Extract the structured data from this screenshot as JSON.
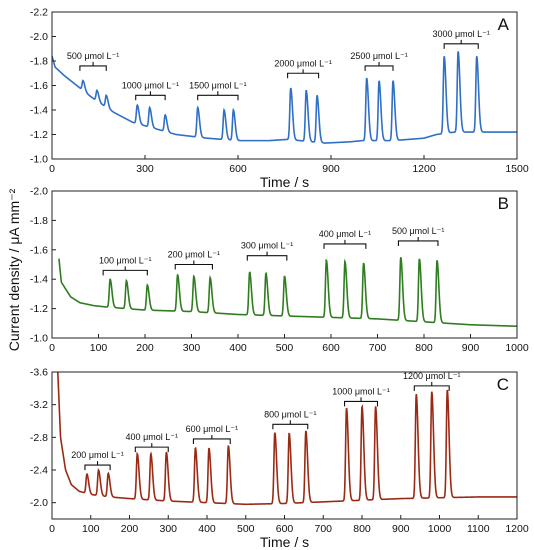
{
  "ylabel": "Current density / μA mm⁻²",
  "chart_data": [
    {
      "type": "line",
      "panel": "A",
      "color": "#2f6fc4",
      "xlabel": "Time / s",
      "xlim": [
        0,
        1500
      ],
      "ylim": [
        -2.2,
        -1.0
      ],
      "y_inverted": true,
      "xticks": [
        0,
        300,
        600,
        900,
        1200,
        1500
      ],
      "yticks": [
        -2.2,
        -2.0,
        -1.8,
        -1.6,
        -1.4,
        -1.2,
        -1.0
      ],
      "grid": false,
      "baseline": {
        "x": [
          0,
          10,
          40,
          80,
          130,
          200,
          260,
          330,
          400,
          500,
          600,
          700,
          760,
          800,
          880,
          960,
          1000,
          1100,
          1200,
          1240,
          1300,
          1400,
          1500
        ],
        "y": [
          -1.84,
          -1.75,
          -1.68,
          -1.6,
          -1.5,
          -1.38,
          -1.3,
          -1.25,
          -1.2,
          -1.17,
          -1.15,
          -1.15,
          -1.16,
          -1.15,
          -1.13,
          -1.14,
          -1.15,
          -1.15,
          -1.17,
          -1.2,
          -1.22,
          -1.22,
          -1.22
        ]
      },
      "peaks": [
        {
          "x": 100,
          "y": -1.64
        },
        {
          "x": 145,
          "y": -1.56
        },
        {
          "x": 175,
          "y": -1.52
        },
        {
          "x": 275,
          "y": -1.44
        },
        {
          "x": 315,
          "y": -1.42
        },
        {
          "x": 365,
          "y": -1.36
        },
        {
          "x": 470,
          "y": -1.42
        },
        {
          "x": 555,
          "y": -1.4
        },
        {
          "x": 585,
          "y": -1.4
        },
        {
          "x": 770,
          "y": -1.58
        },
        {
          "x": 820,
          "y": -1.56
        },
        {
          "x": 855,
          "y": -1.52
        },
        {
          "x": 1015,
          "y": -1.66
        },
        {
          "x": 1055,
          "y": -1.64
        },
        {
          "x": 1100,
          "y": -1.64
        },
        {
          "x": 1265,
          "y": -1.84
        },
        {
          "x": 1310,
          "y": -1.88
        },
        {
          "x": 1370,
          "y": -1.84
        }
      ],
      "groups": [
        {
          "label": "500 μmol L⁻¹",
          "x1": 90,
          "x2": 175,
          "y": -1.76
        },
        {
          "label": "1000 μmol L⁻¹",
          "x1": 270,
          "x2": 365,
          "y": -1.52
        },
        {
          "label": "1500 μmol L⁻¹",
          "x1": 470,
          "x2": 600,
          "y": -1.52
        },
        {
          "label": "2000 μmol L⁻¹",
          "x1": 760,
          "x2": 860,
          "y": -1.7
        },
        {
          "label": "2500 μmol L⁻¹",
          "x1": 1010,
          "x2": 1100,
          "y": -1.76
        },
        {
          "label": "3000 μmol L⁻¹",
          "x1": 1265,
          "x2": 1375,
          "y": -1.94
        }
      ]
    },
    {
      "type": "line",
      "panel": "B",
      "color": "#2e7d1f",
      "xlabel": "",
      "xlim": [
        0,
        1000
      ],
      "ylim": [
        -2.0,
        -1.0
      ],
      "y_inverted": true,
      "xticks": [
        0,
        100,
        200,
        300,
        400,
        500,
        600,
        700,
        800,
        900,
        1000
      ],
      "yticks": [
        -2.0,
        -1.8,
        -1.6,
        -1.4,
        -1.2,
        -1.0
      ],
      "grid": false,
      "baseline": {
        "x": [
          15,
          20,
          40,
          60,
          90,
          120,
          200,
          300,
          400,
          500,
          600,
          700,
          800,
          900,
          1000
        ],
        "y": [
          -1.54,
          -1.38,
          -1.28,
          -1.24,
          -1.22,
          -1.21,
          -1.19,
          -1.18,
          -1.16,
          -1.15,
          -1.14,
          -1.13,
          -1.11,
          -1.09,
          -1.08
        ]
      },
      "peaks": [
        {
          "x": 125,
          "y": -1.4
        },
        {
          "x": 160,
          "y": -1.39
        },
        {
          "x": 205,
          "y": -1.36
        },
        {
          "x": 270,
          "y": -1.43
        },
        {
          "x": 305,
          "y": -1.42
        },
        {
          "x": 340,
          "y": -1.41
        },
        {
          "x": 425,
          "y": -1.45
        },
        {
          "x": 460,
          "y": -1.44
        },
        {
          "x": 500,
          "y": -1.42
        },
        {
          "x": 590,
          "y": -1.53
        },
        {
          "x": 630,
          "y": -1.52
        },
        {
          "x": 670,
          "y": -1.51
        },
        {
          "x": 750,
          "y": -1.55
        },
        {
          "x": 790,
          "y": -1.54
        },
        {
          "x": 828,
          "y": -1.53
        }
      ],
      "groups": [
        {
          "label": "100 μmol L⁻¹",
          "x1": 110,
          "x2": 205,
          "y": -1.46
        },
        {
          "label": "200 μmol L⁻¹",
          "x1": 265,
          "x2": 345,
          "y": -1.5
        },
        {
          "label": "300 μmol L⁻¹",
          "x1": 420,
          "x2": 505,
          "y": -1.56
        },
        {
          "label": "400 μmol L⁻¹",
          "x1": 585,
          "x2": 675,
          "y": -1.64
        },
        {
          "label": "500 μmol L⁻¹",
          "x1": 745,
          "x2": 830,
          "y": -1.66
        }
      ]
    },
    {
      "type": "line",
      "panel": "C",
      "color": "#9a2a14",
      "xlabel": "Time / s",
      "xlim": [
        0,
        1200
      ],
      "ylim": [
        -3.6,
        -1.8
      ],
      "y_inverted": true,
      "xticks": [
        0,
        100,
        200,
        300,
        400,
        500,
        600,
        700,
        800,
        900,
        1000,
        1100,
        1200
      ],
      "yticks": [
        -3.6,
        -3.2,
        -2.8,
        -2.4,
        -2.0
      ],
      "grid": false,
      "baseline": {
        "x": [
          15,
          22,
          35,
          50,
          70,
          100,
          150,
          200,
          300,
          400,
          500,
          600,
          700,
          800,
          900,
          1000,
          1100,
          1200
        ],
        "y": [
          -3.6,
          -2.8,
          -2.4,
          -2.22,
          -2.14,
          -2.1,
          -2.07,
          -2.05,
          -2.02,
          -2.0,
          -1.98,
          -1.99,
          -2.01,
          -2.03,
          -2.05,
          -2.06,
          -2.07,
          -2.07
        ]
      },
      "peaks": [
        {
          "x": 90,
          "y": -2.35
        },
        {
          "x": 120,
          "y": -2.4
        },
        {
          "x": 145,
          "y": -2.36
        },
        {
          "x": 220,
          "y": -2.6
        },
        {
          "x": 255,
          "y": -2.6
        },
        {
          "x": 295,
          "y": -2.62
        },
        {
          "x": 370,
          "y": -2.67
        },
        {
          "x": 405,
          "y": -2.67
        },
        {
          "x": 455,
          "y": -2.7
        },
        {
          "x": 575,
          "y": -2.86
        },
        {
          "x": 612,
          "y": -2.85
        },
        {
          "x": 655,
          "y": -2.88
        },
        {
          "x": 760,
          "y": -3.16
        },
        {
          "x": 800,
          "y": -3.18
        },
        {
          "x": 835,
          "y": -3.18
        },
        {
          "x": 940,
          "y": -3.33
        },
        {
          "x": 980,
          "y": -3.36
        },
        {
          "x": 1020,
          "y": -3.38
        }
      ],
      "groups": [
        {
          "label": "200 μmol L⁻¹",
          "x1": 85,
          "x2": 150,
          "y": -2.46
        },
        {
          "label": "400 μmol L⁻¹",
          "x1": 215,
          "x2": 300,
          "y": -2.68
        },
        {
          "label": "600 μmol L⁻¹",
          "x1": 365,
          "x2": 460,
          "y": -2.78
        },
        {
          "label": "800 μmol L⁻¹",
          "x1": 570,
          "x2": 660,
          "y": -2.96
        },
        {
          "label": "1000 μmol L⁻¹",
          "x1": 755,
          "x2": 840,
          "y": -3.24
        },
        {
          "label": "1200 μmol L⁻¹",
          "x1": 935,
          "x2": 1025,
          "y": -3.43
        }
      ]
    }
  ]
}
